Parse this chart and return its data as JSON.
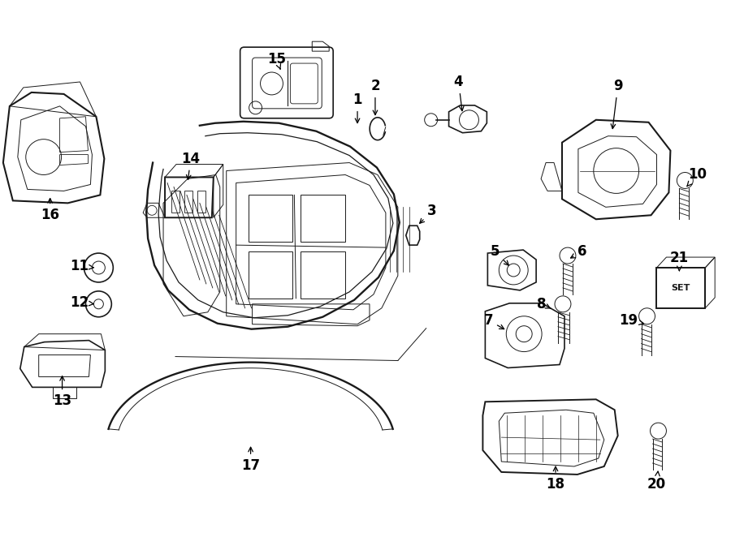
{
  "background_color": "#ffffff",
  "line_color": "#1a1a1a",
  "label_color": "#000000",
  "figsize": [
    9.0,
    6.62
  ],
  "dpi": 100
}
